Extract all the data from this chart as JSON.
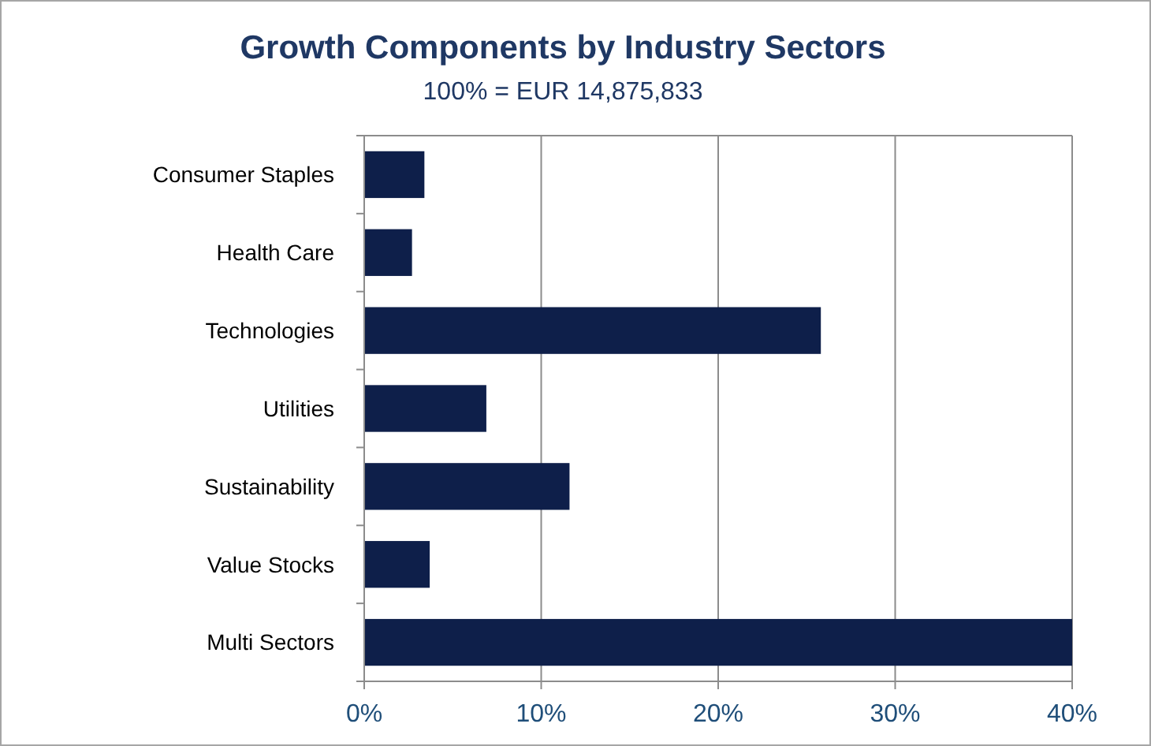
{
  "chart_data": {
    "type": "bar",
    "orientation": "horizontal",
    "title": "Growth Components by Industry Sectors",
    "subtitle": "100% = EUR 14,875,833",
    "categories": [
      "Consumer Staples",
      "Health Care",
      "Technologies",
      "Utilities",
      "Sustainability",
      "Value Stocks",
      "Multi Sectors"
    ],
    "values": [
      3.4,
      2.7,
      25.8,
      6.9,
      11.6,
      3.7,
      40
    ],
    "color": "#0e1f4a",
    "xlim": [
      0,
      40
    ],
    "xticks": [
      {
        "value": 0,
        "label": "0%"
      },
      {
        "value": 10,
        "label": "10%"
      },
      {
        "value": 20,
        "label": "20%"
      },
      {
        "value": 30,
        "label": "30%"
      },
      {
        "value": 40,
        "label": "40%"
      }
    ],
    "grid": "x"
  }
}
